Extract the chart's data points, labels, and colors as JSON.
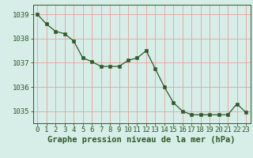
{
  "x": [
    0,
    1,
    2,
    3,
    4,
    5,
    6,
    7,
    8,
    9,
    10,
    11,
    12,
    13,
    14,
    15,
    16,
    17,
    18,
    19,
    20,
    21,
    22,
    23
  ],
  "y": [
    1039.0,
    1038.6,
    1038.3,
    1038.2,
    1037.9,
    1037.2,
    1037.05,
    1036.85,
    1036.85,
    1036.85,
    1037.1,
    1037.2,
    1037.5,
    1036.75,
    1036.0,
    1035.35,
    1035.0,
    1034.85,
    1034.85,
    1034.85,
    1034.85,
    1034.85,
    1035.3,
    1034.95
  ],
  "line_color": "#2d5a27",
  "marker_color": "#2d5a27",
  "bg_color": "#d6ede8",
  "grid_color": "#e8a0a0",
  "axis_color": "#2d5a27",
  "ylabel_ticks": [
    1035,
    1036,
    1037,
    1038,
    1039
  ],
  "xlabel": "Graphe pression niveau de la mer (hPa)",
  "ylim": [
    1034.5,
    1039.4
  ],
  "xlim": [
    -0.5,
    23.5
  ],
  "label_fontsize": 7.5,
  "tick_fontsize": 6.5
}
